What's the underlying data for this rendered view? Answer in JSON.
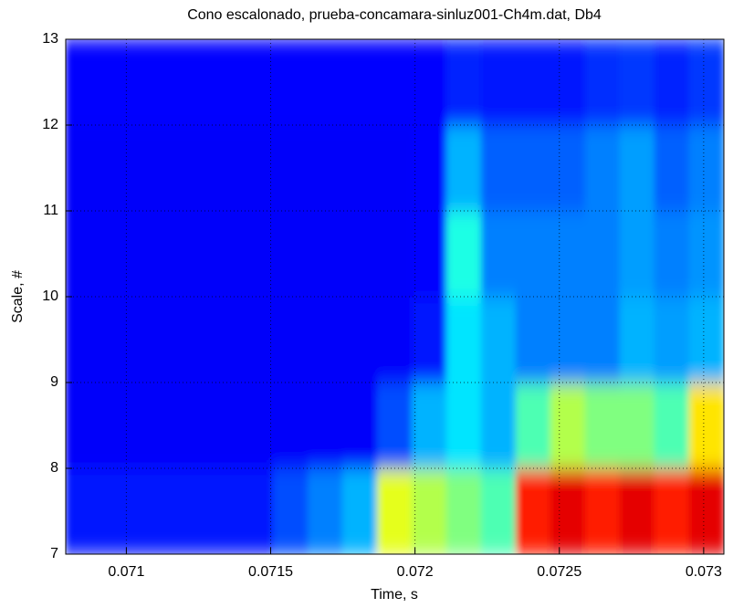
{
  "chart_data": {
    "type": "heatmap",
    "title": "Cono escalonado, prueba-concamara-sinluz001-Ch4m.dat, Db4",
    "x_label": "Time, s",
    "y_label": "Scale, #",
    "xlim": [
      0.07079,
      0.07307
    ],
    "ylim": [
      7,
      13
    ],
    "xticks": [
      0.071,
      0.0715,
      0.072,
      0.0725,
      0.073
    ],
    "yticks": [
      7,
      8,
      9,
      10,
      11,
      12,
      13
    ],
    "grid": true,
    "colormap": "jet",
    "zlim": [
      0,
      1
    ],
    "xbins": [
      0.07079,
      0.07091,
      0.07103,
      0.07115,
      0.07127,
      0.07139,
      0.07151,
      0.07163,
      0.07175,
      0.07187,
      0.07199,
      0.07211,
      0.07223,
      0.07235,
      0.07247,
      0.07259,
      0.07271,
      0.07283,
      0.07295,
      0.07307
    ],
    "ybins": [
      7,
      8,
      9,
      10,
      11,
      12,
      13
    ],
    "values": [
      [
        0.15,
        0.15,
        0.15,
        0.15,
        0.15,
        0.15,
        0.2,
        0.25,
        0.3,
        0.6,
        0.55,
        0.5,
        0.45,
        0.85,
        0.9,
        0.85,
        0.9,
        0.85,
        0.9
      ],
      [
        0.12,
        0.12,
        0.12,
        0.12,
        0.12,
        0.12,
        0.12,
        0.12,
        0.12,
        0.2,
        0.3,
        0.35,
        0.3,
        0.45,
        0.55,
        0.5,
        0.5,
        0.45,
        0.65
      ],
      [
        0.12,
        0.12,
        0.12,
        0.12,
        0.12,
        0.12,
        0.12,
        0.12,
        0.12,
        0.12,
        0.15,
        0.35,
        0.3,
        0.25,
        0.25,
        0.25,
        0.3,
        0.28,
        0.3
      ],
      [
        0.12,
        0.12,
        0.12,
        0.12,
        0.12,
        0.12,
        0.12,
        0.12,
        0.12,
        0.12,
        0.13,
        0.4,
        0.25,
        0.25,
        0.25,
        0.25,
        0.28,
        0.25,
        0.27
      ],
      [
        0.12,
        0.12,
        0.12,
        0.12,
        0.12,
        0.12,
        0.12,
        0.12,
        0.12,
        0.12,
        0.13,
        0.3,
        0.22,
        0.22,
        0.22,
        0.25,
        0.28,
        0.22,
        0.25
      ],
      [
        0.13,
        0.13,
        0.13,
        0.13,
        0.13,
        0.13,
        0.13,
        0.13,
        0.13,
        0.13,
        0.13,
        0.16,
        0.15,
        0.15,
        0.15,
        0.17,
        0.18,
        0.16,
        0.18
      ]
    ]
  }
}
